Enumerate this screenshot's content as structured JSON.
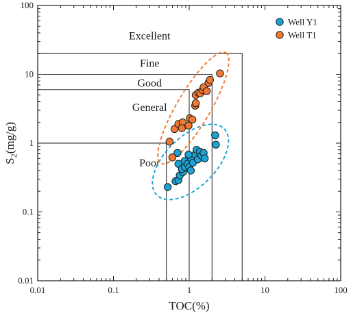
{
  "chart_data": {
    "type": "scatter",
    "title": "",
    "xlabel": "TOC(%)",
    "ylabel_main": "S",
    "ylabel_sub": "2",
    "ylabel_tail": "(mg/g)",
    "x_scale": "log",
    "y_scale": "log",
    "xlim": [
      0.01,
      100
    ],
    "ylim": [
      0.01,
      100
    ],
    "grid": false,
    "legend_position": "top-right",
    "x_ticks": [
      0.01,
      0.1,
      1,
      10,
      100
    ],
    "x_tick_labels": [
      "0.01",
      "0.1",
      "1",
      "10",
      "100"
    ],
    "y_ticks": [
      0.01,
      0.1,
      1,
      10,
      100
    ],
    "y_tick_labels": [
      "0.01",
      "0.1",
      "1",
      "10",
      "100"
    ],
    "regions": [
      {
        "label": "Excellent",
        "toc": 5,
        "s2": 20,
        "label_x": 0.3,
        "label_y": 35
      },
      {
        "label": "Fine",
        "toc": 2,
        "s2": 10,
        "label_x": 0.3,
        "label_y": 14
      },
      {
        "label": "Good",
        "toc": 1,
        "s2": 6,
        "label_x": 0.3,
        "label_y": 7.2
      },
      {
        "label": "General",
        "toc": 0.5,
        "s2": 1,
        "label_x": 0.3,
        "label_y": 3.2
      },
      {
        "label": "Poor",
        "toc": 0.5,
        "s2": 1,
        "label_x": 0.3,
        "label_y": 0.5,
        "no_box": true
      }
    ],
    "series": [
      {
        "name": "Well Y1",
        "color": "#1ba3d6",
        "ellipse_color": "#1ba3d6",
        "points": [
          [
            0.52,
            0.23
          ],
          [
            0.66,
            0.28
          ],
          [
            0.72,
            0.29
          ],
          [
            0.75,
            0.34
          ],
          [
            0.83,
            0.38
          ],
          [
            0.72,
            0.5
          ],
          [
            0.8,
            0.42
          ],
          [
            0.88,
            0.45
          ],
          [
            0.87,
            0.55
          ],
          [
            0.95,
            0.5
          ],
          [
            1.0,
            0.45
          ],
          [
            1.05,
            0.6
          ],
          [
            1.12,
            0.52
          ],
          [
            1.2,
            0.68
          ],
          [
            1.25,
            0.8
          ],
          [
            1.3,
            0.58
          ],
          [
            1.38,
            0.75
          ],
          [
            1.45,
            0.66
          ],
          [
            1.55,
            0.72
          ],
          [
            1.6,
            0.6
          ],
          [
            1.05,
            0.4
          ],
          [
            0.98,
            0.68
          ],
          [
            2.2,
            1.3
          ],
          [
            2.25,
            0.95
          ],
          [
            0.7,
            0.72
          ]
        ]
      },
      {
        "name": "Well T1",
        "color": "#f07a34",
        "ellipse_color": "#f07a34",
        "points": [
          [
            0.55,
            1.05
          ],
          [
            0.6,
            0.62
          ],
          [
            0.64,
            1.6
          ],
          [
            0.72,
            1.9
          ],
          [
            0.82,
            2.0
          ],
          [
            0.8,
            1.65
          ],
          [
            0.98,
            1.8
          ],
          [
            1.02,
            2.3
          ],
          [
            1.1,
            2.2
          ],
          [
            1.2,
            3.5
          ],
          [
            1.22,
            3.8
          ],
          [
            1.22,
            5.0
          ],
          [
            1.32,
            5.4
          ],
          [
            1.4,
            5.3
          ],
          [
            1.5,
            5.9
          ],
          [
            1.55,
            6.5
          ],
          [
            1.7,
            5.7
          ],
          [
            1.8,
            7.5
          ],
          [
            1.88,
            8.3
          ],
          [
            2.55,
            10.3
          ]
        ]
      }
    ],
    "legend": [
      {
        "name": "Well Y1",
        "color": "#1ba3d6"
      },
      {
        "name": "Well T1",
        "color": "#f07a34"
      }
    ]
  }
}
